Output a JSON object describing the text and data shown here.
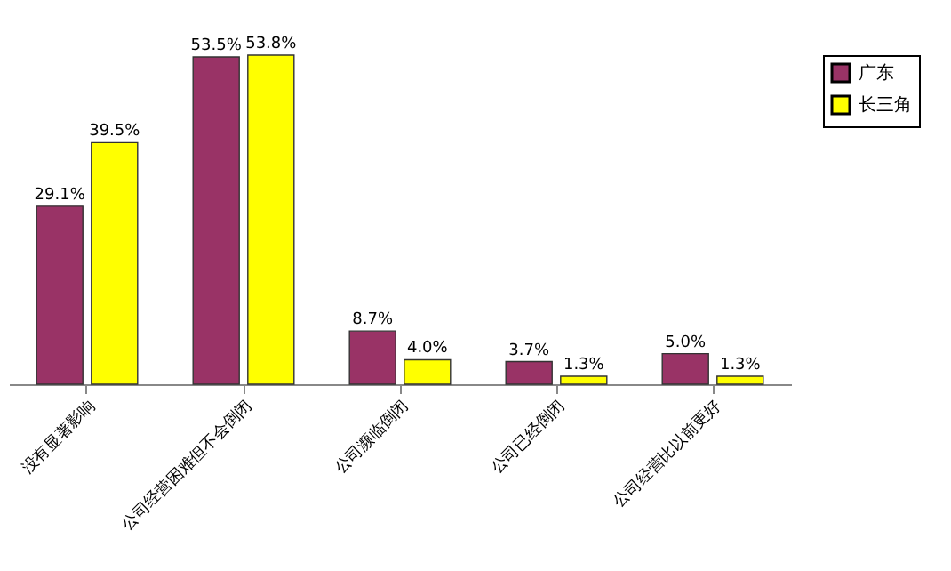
{
  "chart_data": {
    "type": "bar",
    "categories": [
      "没有显著影响",
      "公司经营困难但不会倒闭",
      "公司濒临倒闭",
      "公司已经倒闭",
      "公司经营比以前更好"
    ],
    "series": [
      {
        "name": "广东",
        "color": "#993366",
        "values": [
          29.1,
          53.5,
          8.7,
          3.7,
          5.0
        ],
        "value_labels": [
          "29.1%",
          "53.5%",
          "8.7%",
          "3.7%",
          "5.0%"
        ]
      },
      {
        "name": "长三角",
        "color": "#ffff00",
        "values": [
          39.5,
          53.8,
          4.0,
          1.3,
          1.3
        ],
        "value_labels": [
          "39.5%",
          "53.8%",
          "4.0%",
          "1.3%",
          "1.3%"
        ]
      }
    ],
    "legend": "right",
    "grid": false
  }
}
